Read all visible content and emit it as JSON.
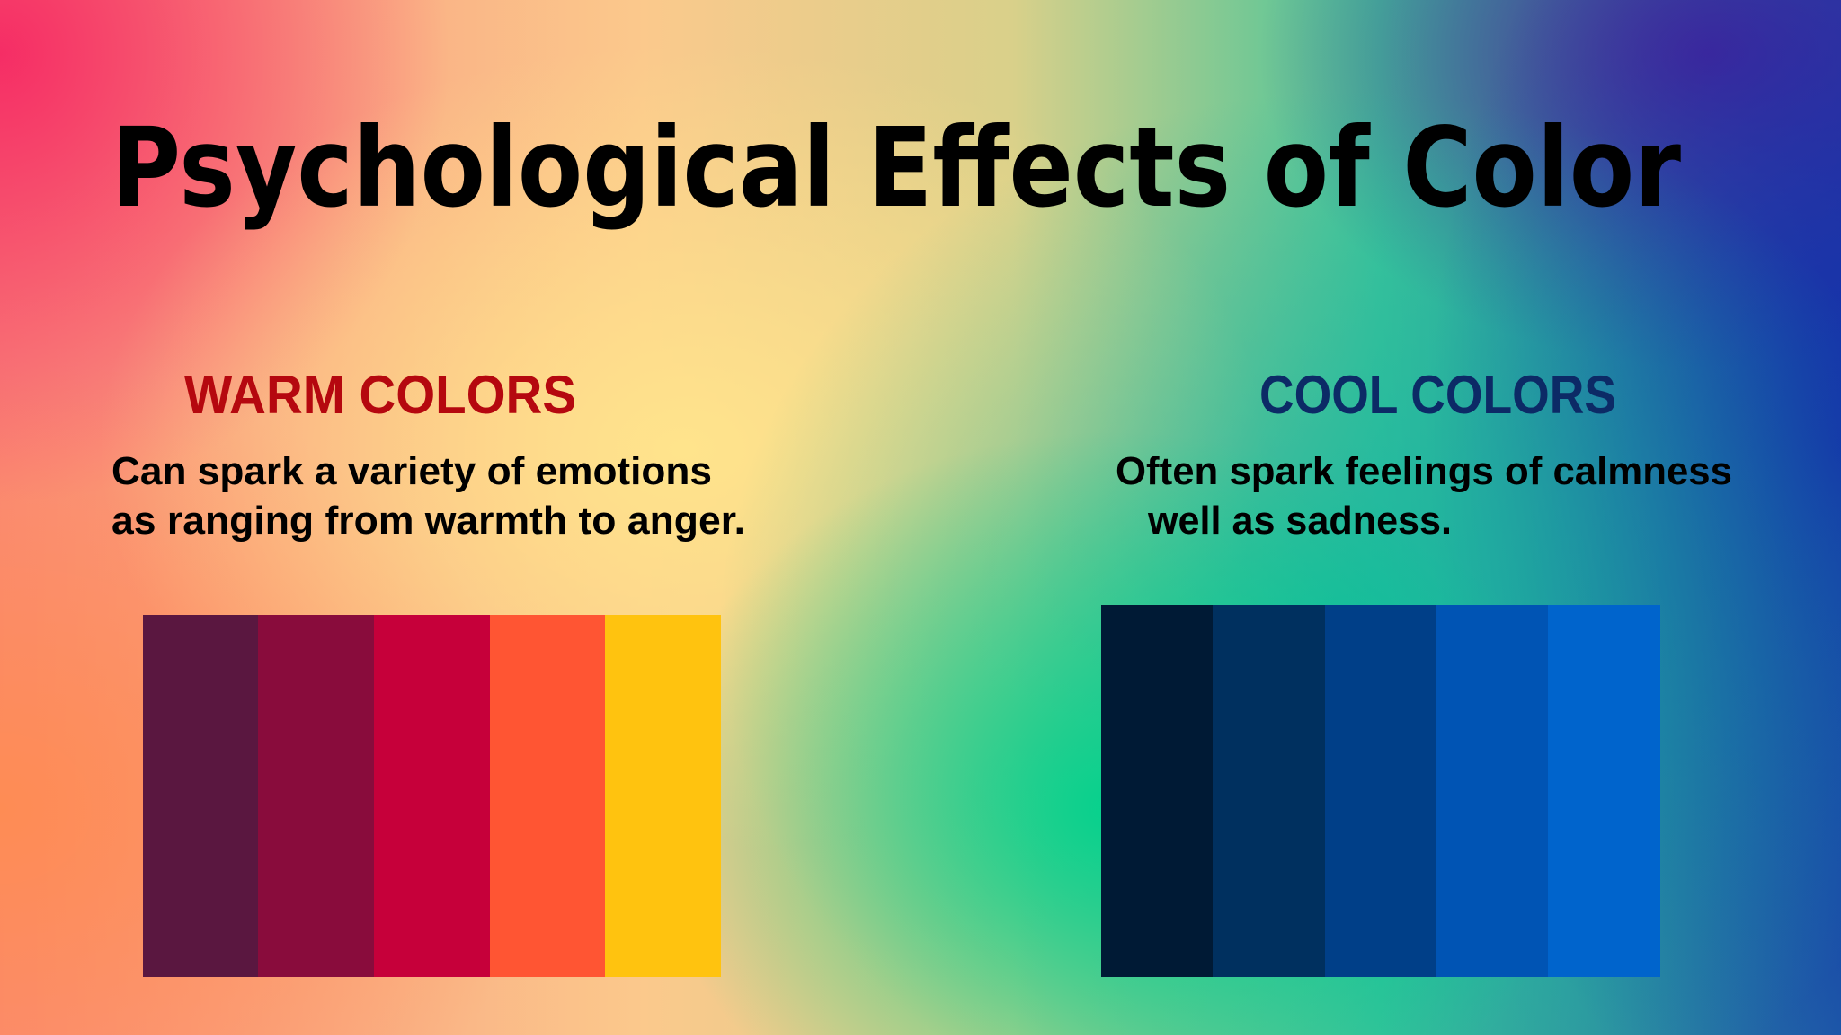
{
  "title": "Psychological Effects of Color",
  "sections": [
    {
      "heading": "WARM COLORS",
      "lines": [
        "Can spark a variety of emotions",
        "as ranging from warmth to anger."
      ]
    },
    {
      "heading": "COOL COLORS",
      "lines": [
        "Often spark feelings of calmness",
        "well as sadness."
      ]
    }
  ]
}
